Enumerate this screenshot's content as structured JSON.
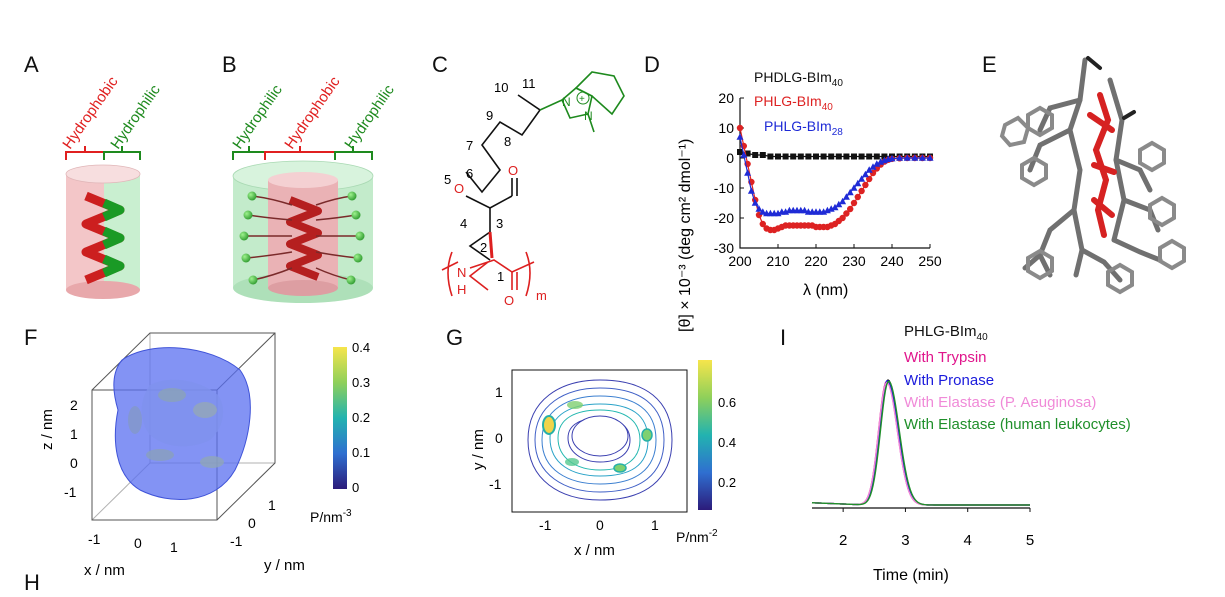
{
  "panels": {
    "A": "A",
    "B": "B",
    "C": "C",
    "D": "D",
    "E": "E",
    "F": "F",
    "G": "G",
    "H": "H",
    "I": "I"
  },
  "panel_a": {
    "hydrophobic": "Hydrophobic",
    "hydrophilic": "Hydrophilic"
  },
  "panel_b": {
    "hydrophilic_left": "Hydrophilic",
    "hydrophobic": "Hydrophobic",
    "hydrophilic_right": "Hydrophilic"
  },
  "panel_c": {
    "numbers": [
      "1",
      "2",
      "3",
      "4",
      "5",
      "6",
      "7",
      "8",
      "9",
      "10",
      "11"
    ],
    "subscript_m": "m",
    "atom_N": "N",
    "atom_H": "H",
    "atom_O": "O",
    "charge": "+"
  },
  "panel_f": {
    "xlabel": "x / nm",
    "ylabel": "y / nm",
    "zlabel": "z / nm",
    "colorbar_unit": "P/nm",
    "colorbar_unit_sup": "-3",
    "colorbar_ticks": [
      "0.4",
      "0.3",
      "0.2",
      "0.1",
      "0"
    ],
    "x_ticks": [
      "-1",
      "0",
      "1"
    ],
    "y_ticks": [
      "-1",
      "0",
      "1"
    ],
    "z_ticks": [
      "2",
      "1",
      "0",
      "-1"
    ]
  },
  "panel_g": {
    "xlabel": "x / nm",
    "ylabel": "y / nm",
    "colorbar_unit": "P/nm",
    "colorbar_unit_sup": "-2",
    "colorbar_ticks": [
      "0.6",
      "0.4",
      "0.2"
    ],
    "x_ticks": [
      "-1",
      "0",
      "1"
    ],
    "y_ticks": [
      "1",
      "0",
      "-1"
    ]
  },
  "chart_data": [
    {
      "id": "D",
      "type": "scatter",
      "xlabel": "λ (nm)",
      "ylabel": "[θ] × 10⁻³ (deg cm² dmol⁻¹)",
      "xlim": [
        200,
        250
      ],
      "ylim": [
        -30,
        20
      ],
      "x_ticks": [
        200,
        210,
        220,
        230,
        240,
        250
      ],
      "y_ticks": [
        20,
        10,
        0,
        -10,
        -20,
        -30
      ],
      "legend_position": "top-right",
      "series": [
        {
          "name": "PHDLG-BIm",
          "sub": "40",
          "color": "#111111",
          "marker": "square",
          "x": [
            200,
            202,
            204,
            206,
            208,
            210,
            212,
            214,
            216,
            218,
            220,
            222,
            224,
            226,
            228,
            230,
            232,
            234,
            236,
            238,
            240,
            242,
            244,
            246,
            248,
            250
          ],
          "y": [
            2,
            1.5,
            1,
            1,
            0.5,
            0.5,
            0.5,
            0.5,
            0.5,
            0.5,
            0.5,
            0.5,
            0.5,
            0.5,
            0.5,
            0.5,
            0.5,
            0.5,
            0.5,
            0.5,
            0.5,
            0.5,
            0.5,
            0.5,
            0.5,
            0.5
          ]
        },
        {
          "name": "PHLG-BIm",
          "sub": "40",
          "color": "#dd2222",
          "marker": "circle",
          "x": [
            200,
            201,
            202,
            203,
            204,
            205,
            206,
            207,
            208,
            209,
            210,
            211,
            212,
            213,
            214,
            215,
            216,
            217,
            218,
            219,
            220,
            221,
            222,
            223,
            224,
            225,
            226,
            227,
            228,
            229,
            230,
            231,
            232,
            233,
            234,
            235,
            236,
            237,
            238,
            239,
            240,
            242,
            244,
            246,
            248,
            250
          ],
          "y": [
            10,
            4,
            -2,
            -8,
            -14,
            -19,
            -22,
            -23.5,
            -24,
            -24,
            -23.5,
            -23,
            -22.5,
            -22.5,
            -22.5,
            -22.5,
            -22.5,
            -22.5,
            -22.5,
            -22.5,
            -23,
            -23,
            -23,
            -23,
            -22.5,
            -22,
            -21,
            -20,
            -18.5,
            -17,
            -15,
            -13,
            -11,
            -9,
            -7,
            -5,
            -3.5,
            -2.2,
            -1.2,
            -0.6,
            -0.3,
            -0.1,
            0,
            0,
            0,
            0
          ]
        },
        {
          "name": "PHLG-BIm",
          "sub": "28",
          "color": "#1f2bd6",
          "marker": "triangle",
          "x": [
            200,
            201,
            202,
            203,
            204,
            205,
            206,
            207,
            208,
            209,
            210,
            211,
            212,
            213,
            214,
            215,
            216,
            217,
            218,
            219,
            220,
            221,
            222,
            223,
            224,
            225,
            226,
            227,
            228,
            229,
            230,
            231,
            232,
            233,
            234,
            235,
            236,
            237,
            238,
            239,
            240,
            242,
            244,
            246,
            248,
            250
          ],
          "y": [
            7,
            1,
            -5,
            -11,
            -15,
            -17,
            -18,
            -18.5,
            -18.5,
            -18.5,
            -18.5,
            -18,
            -18,
            -17.5,
            -17.5,
            -17.5,
            -17.5,
            -17.5,
            -18,
            -18,
            -18,
            -18,
            -18,
            -17.5,
            -17,
            -16.5,
            -15.5,
            -14.5,
            -13,
            -11.5,
            -10,
            -8.5,
            -7,
            -5.5,
            -4,
            -3,
            -2,
            -1.3,
            -0.8,
            -0.4,
            -0.2,
            0,
            0,
            0,
            0,
            0
          ]
        }
      ]
    },
    {
      "id": "I",
      "type": "line",
      "xlabel": "Time (min)",
      "xlim": [
        1.5,
        5
      ],
      "x_ticks": [
        2,
        3,
        4,
        5
      ],
      "legend_position": "top-right",
      "series": [
        {
          "name": "PHLG-BIm",
          "sub": "40",
          "color": "#111111",
          "peak": 2.72,
          "height": 1.0
        },
        {
          "name": "With Trypsin",
          "color": "#e0168c",
          "peak": 2.7,
          "height": 0.99
        },
        {
          "name": "With Pronase",
          "color": "#1b1bdc",
          "peak": 2.71,
          "height": 0.995
        },
        {
          "name": "With Elastase (P. Aeuginosa)",
          "color": "#f08ad8",
          "peak": 2.7,
          "height": 0.98
        },
        {
          "name": "With Elastase (human leukocytes)",
          "color": "#1f8f2a",
          "peak": 2.73,
          "height": 0.99
        }
      ]
    }
  ]
}
